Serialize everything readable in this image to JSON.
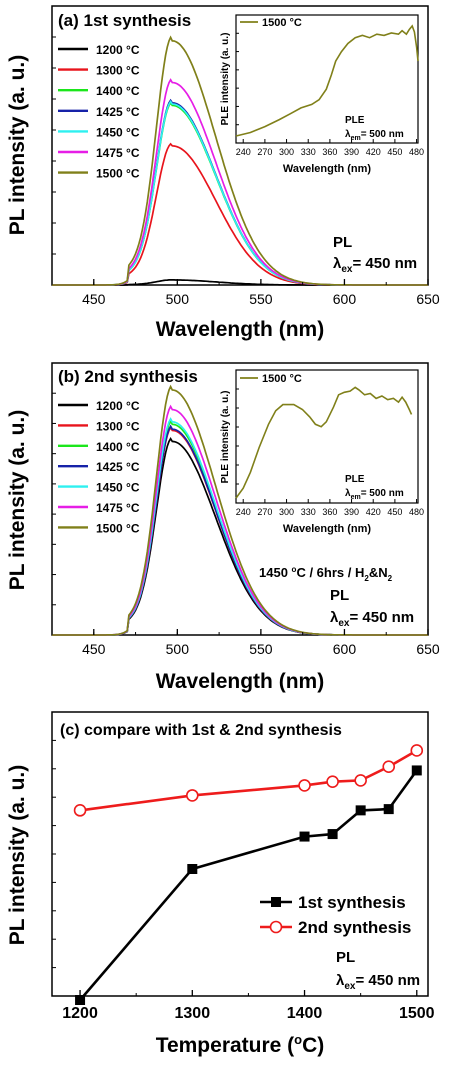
{
  "chart_data": [
    {
      "type": "line",
      "title": "(a) 1st synthesis",
      "xlabel": "Wavelength (nm)",
      "ylabel": "PL intensity (a. u.)",
      "xlim": [
        425,
        650
      ],
      "x_ticks": [
        "450",
        "500",
        "550",
        "600",
        "650"
      ],
      "annotation": {
        "line1": "PL",
        "line2_base": "λ",
        "line2_sub": "ex",
        "line2_tail": "= 450 nm"
      },
      "legend_placement": "top-left",
      "series": [
        {
          "name": "1200 °C",
          "color": "#000000",
          "peak": 0.02
        },
        {
          "name": "1300 °C",
          "color": "#e8141c",
          "peak": 0.55
        },
        {
          "name": "1400 °C",
          "color": "#1be61b",
          "peak": 0.71
        },
        {
          "name": "1425 °C",
          "color": "#1622a8",
          "peak": 0.72
        },
        {
          "name": "1450 °C",
          "color": "#2ef0f0",
          "peak": 0.715
        },
        {
          "name": "1475 °C",
          "color": "#e61ee6",
          "peak": 0.8
        },
        {
          "name": "1500 °C",
          "color": "#80801a",
          "peak": 0.965
        }
      ],
      "inset": {
        "legend": "1500 °C",
        "ylabel": "PLE intensity (a. u.)",
        "xlabel": "Wavelength (nm)",
        "xlim": [
          230,
          482
        ],
        "x_ticks": [
          "240",
          "270",
          "300",
          "330",
          "360",
          "390",
          "420",
          "450",
          "480"
        ],
        "annotation": {
          "line1": "PLE",
          "line2_base": "λ",
          "line2_sub": "em",
          "line2_tail": "= 500 nm"
        },
        "color": "#80801a",
        "points": [
          [
            230,
            0.06
          ],
          [
            250,
            0.09
          ],
          [
            270,
            0.14
          ],
          [
            290,
            0.2
          ],
          [
            305,
            0.25
          ],
          [
            320,
            0.3
          ],
          [
            335,
            0.33
          ],
          [
            345,
            0.37
          ],
          [
            355,
            0.46
          ],
          [
            362,
            0.58
          ],
          [
            368,
            0.7
          ],
          [
            376,
            0.78
          ],
          [
            385,
            0.85
          ],
          [
            395,
            0.9
          ],
          [
            405,
            0.92
          ],
          [
            415,
            0.9
          ],
          [
            425,
            0.93
          ],
          [
            435,
            0.92
          ],
          [
            445,
            0.94
          ],
          [
            455,
            0.93
          ],
          [
            460,
            0.96
          ],
          [
            466,
            0.93
          ],
          [
            470,
            0.97
          ],
          [
            474,
            1.0
          ],
          [
            477,
            0.95
          ],
          [
            480,
            0.82
          ],
          [
            482,
            0.7
          ]
        ]
      }
    },
    {
      "type": "line",
      "title": "(b) 2nd synthesis",
      "xlabel": "Wavelength (nm)",
      "ylabel": "PL intensity (a. u.)",
      "xlim": [
        425,
        650
      ],
      "x_ticks": [
        "450",
        "500",
        "550",
        "600",
        "650"
      ],
      "condition": {
        "pre": "1450 ",
        "sup": "o",
        "mid": "C / 6hrs / H",
        "sub1": "2",
        "amp": "&N",
        "sub2": "2"
      },
      "annotation": {
        "line1": "PL",
        "line2_base": "λ",
        "line2_sub": "ex",
        "line2_tail": "= 450 nm"
      },
      "legend_placement": "top-left",
      "series": [
        {
          "name": "1200 °C",
          "color": "#000000",
          "peak": 0.79
        },
        {
          "name": "1300 °C",
          "color": "#e8141c",
          "peak": 0.835
        },
        {
          "name": "1400 °C",
          "color": "#1be61b",
          "peak": 0.86
        },
        {
          "name": "1425 °C",
          "color": "#1622a8",
          "peak": 0.84
        },
        {
          "name": "1450 °C",
          "color": "#2ef0f0",
          "peak": 0.87
        },
        {
          "name": "1475 °C",
          "color": "#e61ee6",
          "peak": 0.92
        },
        {
          "name": "1500 °C",
          "color": "#80801a",
          "peak": 1.0
        }
      ],
      "inset": {
        "legend": "1500 °C",
        "ylabel": "PLE intensity (a. u.)",
        "xlabel": "Wavelength (nm)",
        "xlim": [
          230,
          482
        ],
        "x_ticks": [
          "240",
          "270",
          "300",
          "330",
          "360",
          "390",
          "420",
          "450",
          "480"
        ],
        "annotation": {
          "line1": "PLE",
          "line2_base": "λ",
          "line2_sub": "em",
          "line2_tail": "= 500 nm"
        },
        "color": "#80801a",
        "points": [
          [
            230,
            0.04
          ],
          [
            240,
            0.12
          ],
          [
            250,
            0.25
          ],
          [
            262,
            0.45
          ],
          [
            275,
            0.64
          ],
          [
            285,
            0.75
          ],
          [
            295,
            0.8
          ],
          [
            310,
            0.8
          ],
          [
            322,
            0.76
          ],
          [
            332,
            0.7
          ],
          [
            340,
            0.64
          ],
          [
            348,
            0.62
          ],
          [
            355,
            0.66
          ],
          [
            365,
            0.78
          ],
          [
            372,
            0.88
          ],
          [
            380,
            0.9
          ],
          [
            388,
            0.91
          ],
          [
            395,
            0.94
          ],
          [
            400,
            0.92
          ],
          [
            408,
            0.88
          ],
          [
            416,
            0.89
          ],
          [
            424,
            0.85
          ],
          [
            432,
            0.87
          ],
          [
            440,
            0.84
          ],
          [
            448,
            0.85
          ],
          [
            455,
            0.82
          ],
          [
            460,
            0.86
          ],
          [
            465,
            0.82
          ],
          [
            470,
            0.76
          ],
          [
            473,
            0.72
          ]
        ]
      }
    },
    {
      "type": "line",
      "title": "(c) compare with 1st & 2nd synthesis",
      "xlabel_pre": "Temperature (",
      "xlabel_sup": "o",
      "xlabel_post": "C)",
      "ylabel": "PL intensity (a. u.)",
      "xlim": [
        1175,
        1510
      ],
      "ylim": [
        0,
        1.05
      ],
      "x_ticks": [
        "1200",
        "1300",
        "1400",
        "1500"
      ],
      "annotation": {
        "line1": "PL",
        "line2_base": "λ",
        "line2_sub": "ex",
        "line2_tail": "= 450 nm"
      },
      "legend_placement": "bottom-right",
      "x": [
        1200,
        1300,
        1400,
        1425,
        1450,
        1475,
        1500
      ],
      "series": [
        {
          "name": "1st synthesis",
          "color": "#000000",
          "marker": "square",
          "values": [
            0.0,
            0.525,
            0.655,
            0.665,
            0.76,
            0.765,
            0.92
          ]
        },
        {
          "name": "2nd synthesis",
          "color": "#ee1c1c",
          "marker": "circle",
          "values": [
            0.76,
            0.82,
            0.86,
            0.875,
            0.88,
            0.935,
            1.0
          ]
        }
      ]
    }
  ]
}
